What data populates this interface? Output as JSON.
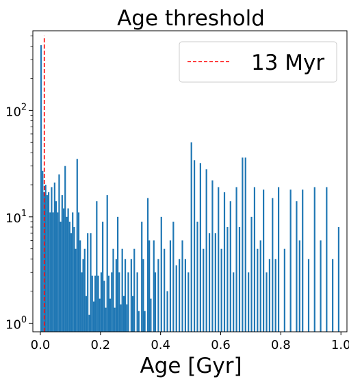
{
  "chart_data": {
    "type": "bar",
    "title": "Age threshold",
    "xlabel": "Age [Gyr]",
    "ylabel": "",
    "yscale": "log",
    "xlim": [
      -0.025,
      1.02
    ],
    "ylim": [
      0.83,
      560
    ],
    "x_ticks": [
      0.0,
      0.2,
      0.4,
      0.6,
      0.8,
      1.0
    ],
    "x_tick_labels": [
      "0.0",
      "0.2",
      "0.4",
      "0.6",
      "0.8",
      "1.0"
    ],
    "y_ticks": [
      {
        "value": 1,
        "base": "10",
        "exp": "0"
      },
      {
        "value": 10,
        "base": "10",
        "exp": "1"
      },
      {
        "value": 100,
        "base": "10",
        "exp": "2"
      }
    ],
    "bar_color": "#1f77b4",
    "bar_width": 0.005,
    "bars": [
      [
        0.0025,
        410
      ],
      [
        0.0075,
        27
      ],
      [
        0.0125,
        17
      ],
      [
        0.0175,
        20
      ],
      [
        0.0225,
        16
      ],
      [
        0.0275,
        17
      ],
      [
        0.0325,
        11
      ],
      [
        0.0375,
        19
      ],
      [
        0.0425,
        11
      ],
      [
        0.0475,
        21
      ],
      [
        0.0525,
        14
      ],
      [
        0.0575,
        11
      ],
      [
        0.0625,
        25
      ],
      [
        0.0675,
        9
      ],
      [
        0.0725,
        16
      ],
      [
        0.0775,
        12
      ],
      [
        0.0825,
        30
      ],
      [
        0.0875,
        10
      ],
      [
        0.0925,
        12
      ],
      [
        0.0975,
        9
      ],
      [
        0.1025,
        7
      ],
      [
        0.1075,
        11
      ],
      [
        0.1125,
        8
      ],
      [
        0.1175,
        5
      ],
      [
        0.1225,
        35
      ],
      [
        0.1275,
        11
      ],
      [
        0.1325,
        6
      ],
      [
        0.1375,
        3
      ],
      [
        0.1425,
        4
      ],
      [
        0.1475,
        5
      ],
      [
        0.1525,
        1.8
      ],
      [
        0.1575,
        7
      ],
      [
        0.1625,
        1.2
      ],
      [
        0.1675,
        7
      ],
      [
        0.1725,
        2.8
      ],
      [
        0.1775,
        1.6
      ],
      [
        0.1825,
        2.8
      ],
      [
        0.1875,
        14
      ],
      [
        0.1925,
        2.8
      ],
      [
        0.1975,
        1.7
      ],
      [
        0.2025,
        3
      ],
      [
        0.2075,
        9
      ],
      [
        0.2125,
        2.5
      ],
      [
        0.2175,
        1.4
      ],
      [
        0.2225,
        16
      ],
      [
        0.2275,
        2.8
      ],
      [
        0.2325,
        1.7
      ],
      [
        0.2375,
        3
      ],
      [
        0.2425,
        5
      ],
      [
        0.2475,
        1.4
      ],
      [
        0.2525,
        4
      ],
      [
        0.2575,
        10
      ],
      [
        0.2625,
        3
      ],
      [
        0.2675,
        1.5
      ],
      [
        0.2725,
        5
      ],
      [
        0.2775,
        1.8
      ],
      [
        0.2825,
        4
      ],
      [
        0.2875,
        1.5
      ],
      [
        0.2925,
        3
      ],
      [
        0.3025,
        4
      ],
      [
        0.3075,
        1.8
      ],
      [
        0.3125,
        5
      ],
      [
        0.3225,
        3
      ],
      [
        0.3275,
        1.3
      ],
      [
        0.3375,
        9
      ],
      [
        0.3425,
        4
      ],
      [
        0.3475,
        1.3
      ],
      [
        0.3575,
        15
      ],
      [
        0.3625,
        6
      ],
      [
        0.3675,
        1.7
      ],
      [
        0.3775,
        6
      ],
      [
        0.3825,
        3
      ],
      [
        0.3925,
        4
      ],
      [
        0.4025,
        10
      ],
      [
        0.4125,
        5
      ],
      [
        0.4225,
        2
      ],
      [
        0.4325,
        6
      ],
      [
        0.4425,
        9
      ],
      [
        0.4525,
        3.5
      ],
      [
        0.4625,
        4
      ],
      [
        0.4725,
        6
      ],
      [
        0.4825,
        4
      ],
      [
        0.4925,
        3
      ],
      [
        0.5025,
        50
      ],
      [
        0.5125,
        34
      ],
      [
        0.5225,
        9
      ],
      [
        0.5325,
        32
      ],
      [
        0.5425,
        5
      ],
      [
        0.5525,
        28
      ],
      [
        0.5625,
        7
      ],
      [
        0.5725,
        22
      ],
      [
        0.5825,
        7
      ],
      [
        0.5925,
        19
      ],
      [
        0.6025,
        5
      ],
      [
        0.6125,
        17
      ],
      [
        0.6225,
        8
      ],
      [
        0.6325,
        14
      ],
      [
        0.6425,
        3
      ],
      [
        0.6525,
        19
      ],
      [
        0.6625,
        8
      ],
      [
        0.6725,
        36
      ],
      [
        0.6825,
        36
      ],
      [
        0.6925,
        3
      ],
      [
        0.7025,
        10
      ],
      [
        0.7125,
        19
      ],
      [
        0.7225,
        5
      ],
      [
        0.7325,
        6
      ],
      [
        0.7425,
        18
      ],
      [
        0.7525,
        3
      ],
      [
        0.7625,
        4
      ],
      [
        0.7725,
        15
      ],
      [
        0.7825,
        4
      ],
      [
        0.7925,
        19
      ],
      [
        0.8125,
        5
      ],
      [
        0.8325,
        18
      ],
      [
        0.8525,
        14
      ],
      [
        0.8625,
        6
      ],
      [
        0.8725,
        18
      ],
      [
        0.8925,
        4
      ],
      [
        0.9125,
        19
      ],
      [
        0.9325,
        6
      ],
      [
        0.9525,
        19
      ],
      [
        0.9725,
        4
      ],
      [
        0.9925,
        8
      ]
    ],
    "threshold": {
      "x": 0.013,
      "y_top": 500,
      "color": "#ff0000",
      "label": "13 Myr"
    },
    "legend": {
      "position": "top-right",
      "entries": [
        "13 Myr"
      ]
    },
    "grid": false
  }
}
